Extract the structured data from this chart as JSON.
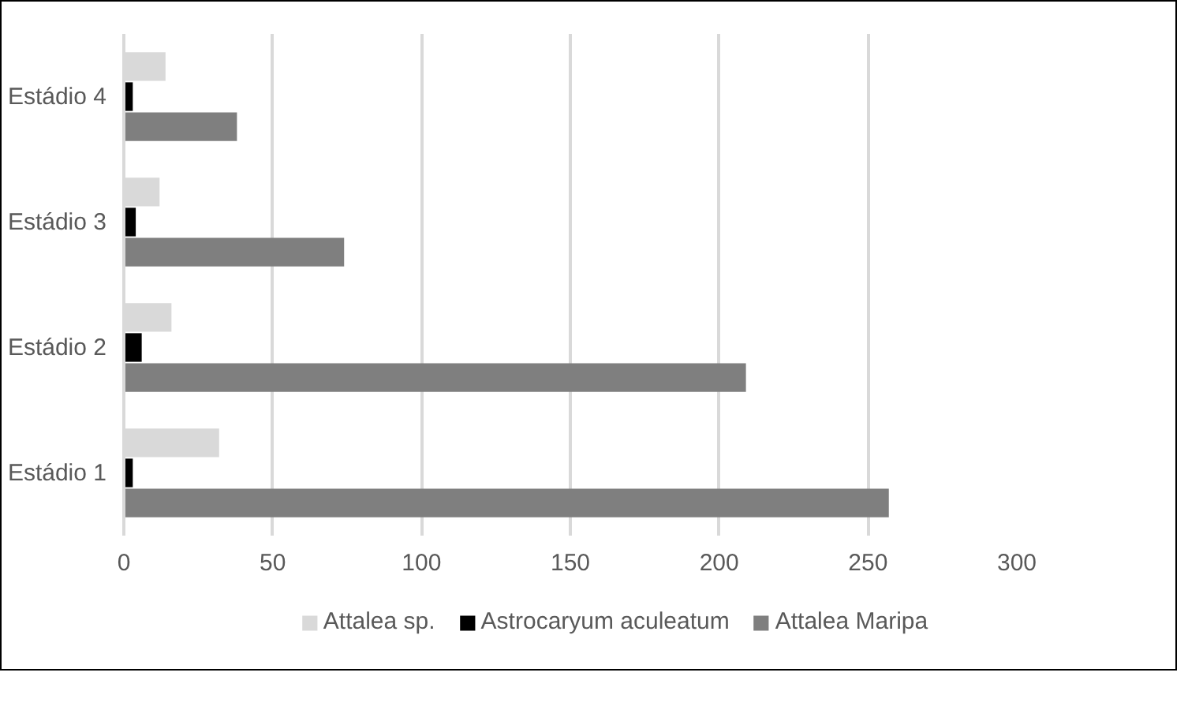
{
  "chart_data": {
    "type": "bar",
    "orientation": "horizontal",
    "categories": [
      "Estádio 4",
      "Estádio 3",
      "Estádio 2",
      "Estádio 1"
    ],
    "series": [
      {
        "name": "Attalea sp.",
        "color": "#d9d9d9",
        "values": [
          14,
          12,
          16,
          32
        ]
      },
      {
        "name": "Astrocaryum aculeatum",
        "color": "#000000",
        "values": [
          3,
          4,
          6,
          3
        ]
      },
      {
        "name": "Attalea Maripa",
        "color": "#7f7f7f",
        "values": [
          38,
          74,
          209,
          257
        ]
      }
    ],
    "xlim": [
      0,
      300
    ],
    "xticks": [
      0,
      50,
      100,
      150,
      200,
      250,
      300
    ],
    "grid": "x",
    "legend": "bottom"
  }
}
